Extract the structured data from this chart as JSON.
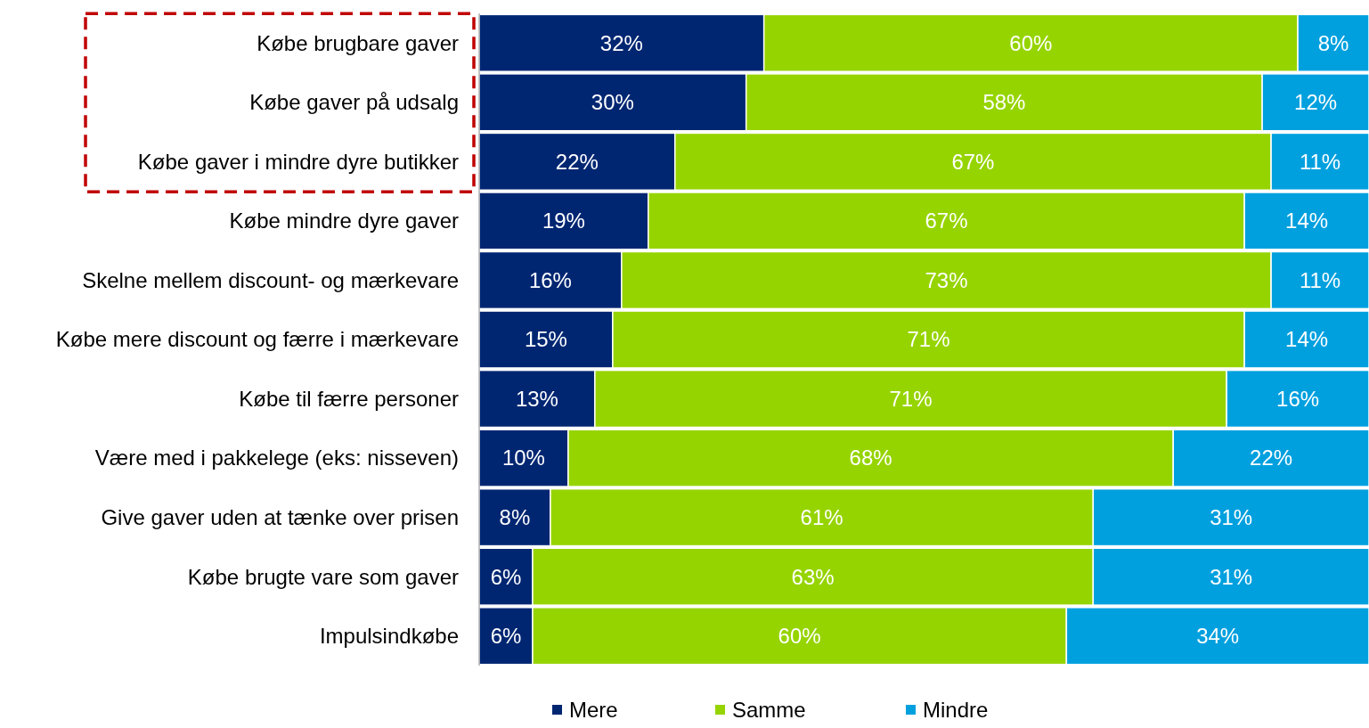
{
  "chart_data": {
    "type": "bar",
    "orientation": "horizontal",
    "stacked": true,
    "legend": "bottom",
    "xlim": [
      0,
      100
    ],
    "tick_labels": "y",
    "categories": [
      "Købe brugbare gaver",
      "Købe gaver på udsalg",
      "Købe gaver i mindre dyre butikker",
      "Købe mindre dyre gaver",
      "Skelne mellem discount- og mærkevare",
      "Købe mere discount og færre i mærkevare",
      "Købe til færre personer",
      "Være med i pakkelege (eks: nisseven)",
      "Give gaver uden at tænke over prisen",
      "Købe brugte vare som gaver",
      "Impulsindkøbe"
    ],
    "series": [
      {
        "name": "Mere",
        "color": "#002672",
        "values": [
          32,
          30,
          22,
          19,
          16,
          15,
          13,
          10,
          8,
          6,
          6
        ],
        "value_labels": [
          "32%",
          "30%",
          "22%",
          "19%",
          "16%",
          "15%",
          "13%",
          "10%",
          "8%",
          "6%",
          "6%"
        ]
      },
      {
        "name": "Samme",
        "color": "#96d400",
        "values": [
          60,
          58,
          67,
          67,
          73,
          71,
          71,
          68,
          61,
          63,
          60
        ],
        "value_labels": [
          "60%",
          "58%",
          "67%",
          "67%",
          "73%",
          "71%",
          "71%",
          "68%",
          "61%",
          "63%",
          "60%"
        ]
      },
      {
        "name": "Mindre",
        "color": "#00a0df",
        "values": [
          8,
          12,
          11,
          14,
          11,
          14,
          16,
          22,
          31,
          31,
          34
        ],
        "value_labels": [
          "8%",
          "12%",
          "11%",
          "14%",
          "11%",
          "14%",
          "16%",
          "22%",
          "31%",
          "31%",
          "34%"
        ]
      }
    ]
  }
}
